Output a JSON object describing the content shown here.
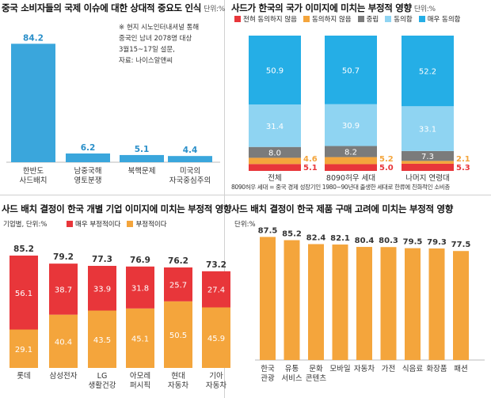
{
  "chart_data": [
    {
      "type": "bar",
      "title": "중국 소비자들의 국제 이슈에 대한 상대적 중요도 인식",
      "unit": "단위:%",
      "categories": [
        [
          "한반도",
          "사드배치"
        ],
        [
          "남중국해",
          "영토분쟁"
        ],
        [
          "북핵문제"
        ],
        [
          "미국의",
          "자국중심주의"
        ]
      ],
      "values": [
        84.2,
        6.2,
        5.1,
        4.4
      ],
      "note": [
        "※ 현지 시노인터내셔널 통해",
        "중국인 남녀 2078명 대상",
        "3월15~17일 설문,",
        "자료: 나이스알앤씨"
      ],
      "colors": {
        "bar": "#3aa6dc",
        "label": "#2a8fc9"
      }
    },
    {
      "type": "bar",
      "stacked": true,
      "title": "사드가 한국의 국가 이미지에 미치는 부정적 영향",
      "unit": "단위:%",
      "legend": [
        "전혀 동의하지 않음",
        "동의하지 않음",
        "중립",
        "동의함",
        "매우 동의함"
      ],
      "colors": [
        "#e8363a",
        "#f4a53c",
        "#7b7b7b",
        "#8fd4f2",
        "#25aee6"
      ],
      "categories": [
        "전체",
        "8090허우 세대",
        "나머지 연령대"
      ],
      "series": [
        {
          "name": "전혀 동의하지 않음",
          "values": [
            5.1,
            5.0,
            5.3
          ]
        },
        {
          "name": "동의하지 않음",
          "values": [
            4.6,
            5.2,
            2.1
          ]
        },
        {
          "name": "중립",
          "values": [
            8.0,
            8.2,
            7.3
          ]
        },
        {
          "name": "동의함",
          "values": [
            31.4,
            30.9,
            33.1
          ]
        },
        {
          "name": "매우 동의함",
          "values": [
            50.9,
            50.7,
            52.2
          ]
        }
      ],
      "footnote": "8090허우 세대 = 중국 경제 성장기인 1980~90년대 출생한 세대로 한류에 친화적인 소비층"
    },
    {
      "type": "bar",
      "stacked": true,
      "title": "사드 배치 결정이 한국 개별 기업 이미지에 미치는 부정적 영향",
      "unit": "기업별, 단위:%",
      "legend": [
        "매우 부정적이다",
        "부정적이다"
      ],
      "colors": [
        "#e8363a",
        "#f4a53c"
      ],
      "categories": [
        [
          "롯데"
        ],
        [
          "삼성전자"
        ],
        [
          "LG",
          "생활건강"
        ],
        [
          "아모레",
          "퍼시픽"
        ],
        [
          "현대",
          "자동차"
        ],
        [
          "기아",
          "자동차"
        ]
      ],
      "totals": [
        85.2,
        79.2,
        77.3,
        76.9,
        76.2,
        73.2
      ],
      "series": [
        {
          "name": "부정적이다",
          "values": [
            29.1,
            40.4,
            43.5,
            45.1,
            50.5,
            45.9
          ]
        },
        {
          "name": "매우 부정적이다",
          "values": [
            56.1,
            38.7,
            33.9,
            31.8,
            25.7,
            27.4
          ]
        }
      ]
    },
    {
      "type": "bar",
      "title": "사드 배치 결정이 한국 제품 구매 고려에 미치는 부정적 영향",
      "unit": "단위:%",
      "categories": [
        [
          "한국",
          "관광"
        ],
        [
          "유통",
          "서비스"
        ],
        [
          "문화",
          "콘텐츠"
        ],
        [
          "모바일"
        ],
        [
          "자동차"
        ],
        [
          "가전"
        ],
        [
          "식음료"
        ],
        [
          "화장품"
        ],
        [
          "패션"
        ]
      ],
      "values": [
        87.5,
        85.2,
        82.4,
        82.1,
        80.4,
        80.3,
        79.5,
        79.3,
        77.5
      ],
      "colors": {
        "bar": "#f4a53c"
      }
    }
  ]
}
